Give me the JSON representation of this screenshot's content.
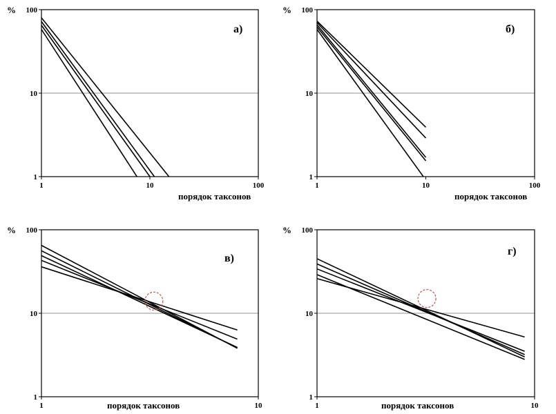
{
  "chart_data": [
    {
      "type": "line",
      "panel_label": "а)",
      "xlabel": "порядок таксонов",
      "ylabel": "%",
      "x_scale": "log",
      "y_scale": "log",
      "xlim": [
        1,
        100
      ],
      "ylim": [
        1,
        100
      ],
      "x_ticks": [
        "1",
        "10",
        "100"
      ],
      "y_ticks": [
        "1",
        "10",
        "100"
      ],
      "reference_line_y": 10,
      "series": [
        {
          "points": [
            [
              1,
              80
            ],
            [
              15,
              1
            ]
          ]
        },
        {
          "points": [
            [
              1,
              72
            ],
            [
              11,
              1
            ]
          ]
        },
        {
          "points": [
            [
              1,
              65
            ],
            [
              10,
              1
            ]
          ]
        },
        {
          "points": [
            [
              1,
              58
            ],
            [
              7.6,
              1
            ]
          ]
        }
      ]
    },
    {
      "type": "line",
      "panel_label": "б)",
      "xlabel": "порядок таксонов",
      "ylabel": "%",
      "x_scale": "log",
      "y_scale": "log",
      "xlim": [
        1,
        100
      ],
      "ylim": [
        1,
        100
      ],
      "x_ticks": [
        "1",
        "10",
        "100"
      ],
      "y_ticks": [
        "1",
        "10",
        "100"
      ],
      "reference_line_y": 10,
      "series": [
        {
          "points": [
            [
              1,
              73
            ],
            [
              10,
              3.9
            ]
          ]
        },
        {
          "points": [
            [
              1,
              70
            ],
            [
              10,
              2.9
            ]
          ]
        },
        {
          "points": [
            [
              1,
              66
            ],
            [
              10,
              1.7
            ]
          ]
        },
        {
          "points": [
            [
              1,
              62
            ],
            [
              10,
              1.55
            ]
          ]
        },
        {
          "points": [
            [
              1,
              58
            ],
            [
              9.5,
              1
            ]
          ]
        }
      ]
    },
    {
      "type": "line",
      "panel_label": "в)",
      "xlabel": "порядок таксонов",
      "ylabel": "%",
      "x_scale": "log",
      "y_scale": "log",
      "xlim": [
        1,
        10
      ],
      "ylim": [
        1,
        100
      ],
      "x_ticks": [
        "1",
        "10"
      ],
      "y_ticks": [
        "1",
        "10",
        "100"
      ],
      "reference_line_y": 10,
      "highlight_circle": {
        "x": 3.3,
        "y": 14
      },
      "series": [
        {
          "points": [
            [
              1,
              36
            ],
            [
              8,
              6.3
            ]
          ]
        },
        {
          "points": [
            [
              1,
              43
            ],
            [
              8,
              4.9
            ]
          ]
        },
        {
          "points": [
            [
              1,
              49
            ],
            [
              8,
              3.9
            ]
          ]
        },
        {
          "points": [
            [
              1,
              56
            ],
            [
              8,
              3.85
            ]
          ]
        },
        {
          "points": [
            [
              1,
              65
            ],
            [
              8,
              3.8
            ]
          ]
        }
      ]
    },
    {
      "type": "line",
      "panel_label": "г)",
      "xlabel": "порядок таксонов",
      "ylabel": "%",
      "x_scale": "log",
      "y_scale": "log",
      "xlim": [
        1,
        10
      ],
      "ylim": [
        1,
        100
      ],
      "x_ticks": [
        "1",
        "10"
      ],
      "y_ticks": [
        "1",
        "10",
        "100"
      ],
      "reference_line_y": 10,
      "highlight_circle": {
        "x": 3.2,
        "y": 15
      },
      "series": [
        {
          "points": [
            [
              1,
              26
            ],
            [
              9,
              5.2
            ]
          ]
        },
        {
          "points": [
            [
              1,
              29
            ],
            [
              9,
              2.8
            ]
          ]
        },
        {
          "points": [
            [
              1,
              34
            ],
            [
              9,
              3.5
            ]
          ]
        },
        {
          "points": [
            [
              1,
              39
            ],
            [
              9,
              3.2
            ]
          ]
        },
        {
          "points": [
            [
              1,
              45
            ],
            [
              9,
              3.0
            ]
          ]
        }
      ]
    }
  ]
}
